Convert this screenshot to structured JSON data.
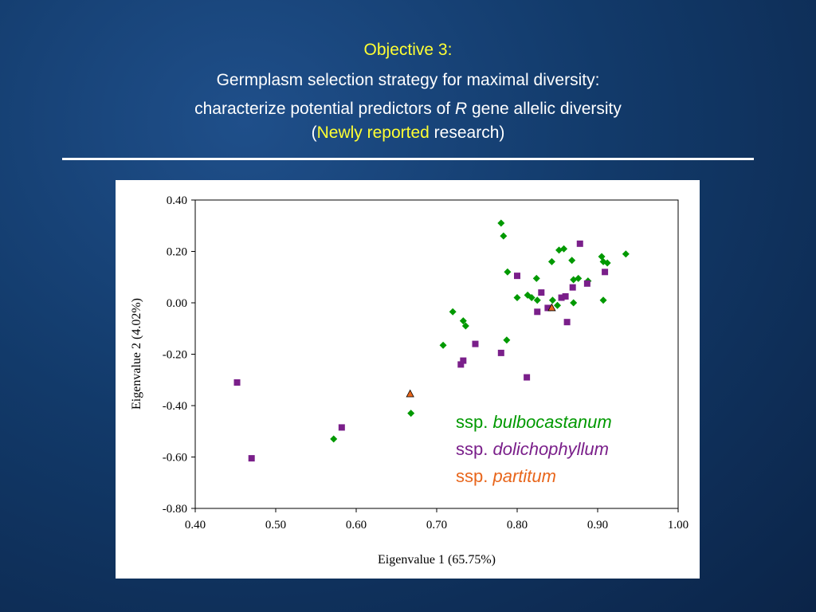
{
  "header": {
    "objective": "Objective 3:",
    "line2": "Germplasm selection strategy for maximal diversity:",
    "line3_pre": "characterize potential predictors of ",
    "line3_italic": "R",
    "line3_post": " gene allelic diversity",
    "line4_open": "(",
    "line4_highlight": "Newly reported",
    "line4_post": " research)"
  },
  "chart_data": {
    "type": "scatter",
    "xlabel": "Eigenvalue 1 (65.75%)",
    "ylabel": "Eigenvalue 2 (4.02%)",
    "xlim": [
      0.4,
      1.0
    ],
    "ylim": [
      -0.8,
      0.4
    ],
    "xticks": [
      "0.40",
      "0.50",
      "0.60",
      "0.70",
      "0.80",
      "0.90",
      "1.00"
    ],
    "yticks": [
      "0.40",
      "0.20",
      "0.00",
      "-0.20",
      "-0.40",
      "-0.60",
      "-0.80"
    ],
    "legend_position": "inside-bottom-right",
    "series": [
      {
        "name_prefix": "ssp. ",
        "name_italic": "bulbocastanum",
        "color": "#009900",
        "marker": "diamond",
        "points": [
          [
            0.78,
            0.31
          ],
          [
            0.783,
            0.26
          ],
          [
            0.788,
            0.12
          ],
          [
            0.8,
            0.02
          ],
          [
            0.813,
            0.03
          ],
          [
            0.818,
            0.02
          ],
          [
            0.825,
            0.01
          ],
          [
            0.824,
            0.095
          ],
          [
            0.843,
            0.16
          ],
          [
            0.844,
            0.01
          ],
          [
            0.85,
            -0.01
          ],
          [
            0.852,
            0.205
          ],
          [
            0.858,
            0.21
          ],
          [
            0.868,
            0.165
          ],
          [
            0.87,
            0.09
          ],
          [
            0.876,
            0.095
          ],
          [
            0.87,
            0.0
          ],
          [
            0.888,
            0.085
          ],
          [
            0.905,
            0.18
          ],
          [
            0.907,
            0.16
          ],
          [
            0.907,
            0.01
          ],
          [
            0.912,
            0.155
          ],
          [
            0.935,
            0.19
          ],
          [
            0.72,
            -0.035
          ],
          [
            0.733,
            -0.07
          ],
          [
            0.736,
            -0.09
          ],
          [
            0.708,
            -0.165
          ],
          [
            0.787,
            -0.145
          ],
          [
            0.668,
            -0.43
          ],
          [
            0.572,
            -0.53
          ]
        ]
      },
      {
        "name_prefix": "ssp. ",
        "name_italic": "dolichophyllum",
        "color": "#7a1f8a",
        "marker": "square",
        "points": [
          [
            0.452,
            -0.31
          ],
          [
            0.47,
            -0.605
          ],
          [
            0.582,
            -0.485
          ],
          [
            0.73,
            -0.24
          ],
          [
            0.733,
            -0.225
          ],
          [
            0.748,
            -0.16
          ],
          [
            0.78,
            -0.195
          ],
          [
            0.812,
            -0.29
          ],
          [
            0.8,
            0.105
          ],
          [
            0.825,
            -0.035
          ],
          [
            0.83,
            0.04
          ],
          [
            0.838,
            -0.02
          ],
          [
            0.855,
            0.02
          ],
          [
            0.86,
            0.025
          ],
          [
            0.862,
            -0.075
          ],
          [
            0.869,
            0.06
          ],
          [
            0.878,
            0.23
          ],
          [
            0.887,
            0.075
          ],
          [
            0.909,
            0.12
          ]
        ]
      },
      {
        "name_prefix": "ssp. ",
        "name_italic": "partitum",
        "color": "#e8661c",
        "marker": "triangle",
        "points": [
          [
            0.667,
            -0.355
          ],
          [
            0.843,
            -0.02
          ]
        ]
      }
    ]
  }
}
